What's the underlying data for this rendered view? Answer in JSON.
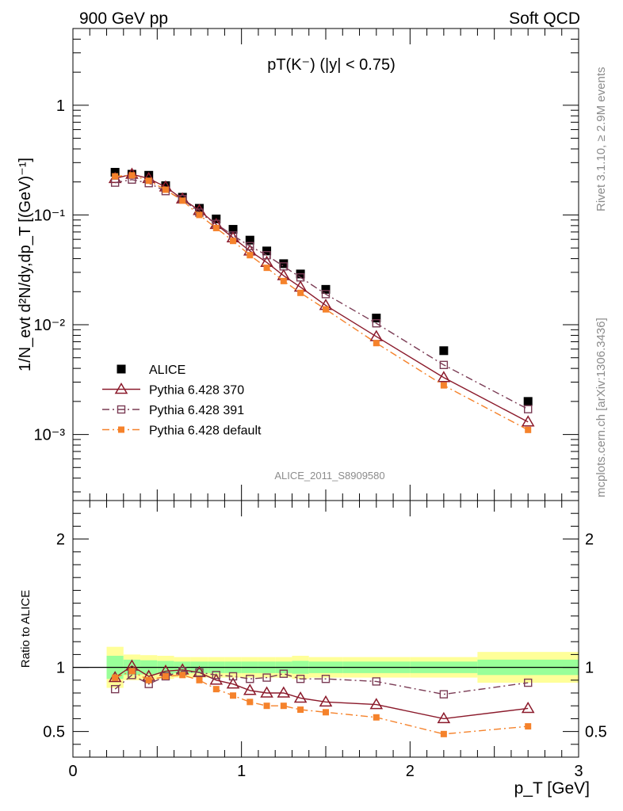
{
  "header": {
    "left": "900 GeV pp",
    "right": "Soft QCD"
  },
  "side_text": {
    "rivet": "Rivet 3.1.10, ≥ 2.9M events",
    "mcplots": "mcplots.cern.ch [arXiv:1306.3436]"
  },
  "chart_data": [
    {
      "type": "scatter",
      "panel": "main",
      "title": "pT(K⁻) (|y| < 0.75)",
      "ylabel": "1/N_evt d²N/dy,dp_T [(GeV)⁻¹]",
      "xlabel": "",
      "watermark": "ALICE_2011_S8909580",
      "yscale": "log",
      "xlim": [
        0,
        3
      ],
      "ylim": [
        0.00025,
        5
      ],
      "x_tick_labels": [
        "0",
        "1",
        "2",
        "3"
      ],
      "y_tick_labels": [
        "10⁻³",
        "10⁻²",
        "10⁻¹",
        "1"
      ],
      "legend_position": "bottom-left",
      "x": [
        0.25,
        0.35,
        0.45,
        0.55,
        0.65,
        0.75,
        0.85,
        0.95,
        1.05,
        1.15,
        1.25,
        1.35,
        1.5,
        1.8,
        2.2,
        2.7
      ],
      "series": [
        {
          "name": "ALICE",
          "color": "#000000",
          "marker": "filled-square",
          "line": "none",
          "values": [
            0.245,
            0.235,
            0.23,
            0.185,
            0.145,
            0.115,
            0.092,
            0.074,
            0.059,
            0.047,
            0.036,
            0.029,
            0.021,
            0.0115,
            0.0058,
            0.002
          ]
        },
        {
          "name": "Pythia 6.428 370",
          "color": "#8b1a2b",
          "marker": "open-triangle",
          "line": "solid",
          "values": [
            0.215,
            0.235,
            0.215,
            0.18,
            0.14,
            0.11,
            0.082,
            0.062,
            0.047,
            0.037,
            0.028,
            0.022,
            0.015,
            0.0078,
            0.0033,
            0.0013
          ]
        },
        {
          "name": "Pythia 6.428 391",
          "color": "#7a3b54",
          "marker": "open-square",
          "line": "dash-dot",
          "values": [
            0.197,
            0.21,
            0.195,
            0.165,
            0.14,
            0.105,
            0.083,
            0.065,
            0.052,
            0.043,
            0.034,
            0.027,
            0.019,
            0.0103,
            0.0043,
            0.0017
          ]
        },
        {
          "name": "Pythia 6.428 default",
          "color": "#f5822b",
          "marker": "filled-square-small",
          "line": "dash-dot",
          "values": [
            0.225,
            0.23,
            0.205,
            0.17,
            0.135,
            0.1,
            0.076,
            0.058,
            0.043,
            0.033,
            0.025,
            0.0195,
            0.0138,
            0.0068,
            0.0028,
            0.0011
          ]
        }
      ]
    },
    {
      "type": "line",
      "panel": "ratio",
      "ylabel": "Ratio to ALICE",
      "xlabel": "p_T [GeV]",
      "xlim": [
        0,
        3
      ],
      "ylim": [
        0.3,
        2.3
      ],
      "x_tick_labels": [
        "0",
        "1",
        "2",
        "3"
      ],
      "y_tick_labels": [
        "0.5",
        "1",
        "2"
      ],
      "reference_line": 1,
      "uncertainty_bands": {
        "bins": [
          [
            0.2,
            0.3
          ],
          [
            0.3,
            0.4
          ],
          [
            0.4,
            0.5
          ],
          [
            0.5,
            0.6
          ],
          [
            0.6,
            0.7
          ],
          [
            0.7,
            0.8
          ],
          [
            0.8,
            0.9
          ],
          [
            0.9,
            1.0
          ],
          [
            1.0,
            1.1
          ],
          [
            1.1,
            1.2
          ],
          [
            1.2,
            1.3
          ],
          [
            1.3,
            1.4
          ],
          [
            1.4,
            1.6
          ],
          [
            1.6,
            2.0
          ],
          [
            2.0,
            2.4
          ],
          [
            2.4,
            3.0
          ]
        ],
        "stat_color": "#99ff99",
        "total_color": "#ffff99",
        "stat_half_width": [
          0.09,
          0.06,
          0.055,
          0.05,
          0.045,
          0.045,
          0.045,
          0.045,
          0.045,
          0.045,
          0.045,
          0.05,
          0.045,
          0.045,
          0.045,
          0.06
        ],
        "total_half_width": [
          0.16,
          0.1,
          0.095,
          0.09,
          0.08,
          0.08,
          0.08,
          0.08,
          0.08,
          0.08,
          0.08,
          0.09,
          0.08,
          0.08,
          0.08,
          0.12
        ]
      },
      "x": [
        0.25,
        0.35,
        0.45,
        0.55,
        0.65,
        0.75,
        0.85,
        0.95,
        1.05,
        1.15,
        1.25,
        1.35,
        1.5,
        1.8,
        2.2,
        2.7
      ],
      "series": [
        {
          "name": "Pythia 6.428 370",
          "color": "#8b1a2b",
          "marker": "open-triangle",
          "line": "solid",
          "values": [
            0.92,
            1.01,
            0.93,
            0.97,
            0.98,
            0.96,
            0.9,
            0.87,
            0.82,
            0.8,
            0.8,
            0.76,
            0.73,
            0.71,
            0.6,
            0.68
          ]
        },
        {
          "name": "Pythia 6.428 391",
          "color": "#7a3b54",
          "marker": "open-square",
          "line": "dash-dot",
          "values": [
            0.83,
            0.94,
            0.87,
            0.93,
            0.97,
            0.96,
            0.94,
            0.93,
            0.91,
            0.92,
            0.95,
            0.91,
            0.91,
            0.89,
            0.79,
            0.88
          ]
        },
        {
          "name": "Pythia 6.428 default",
          "color": "#f5822b",
          "marker": "filled-square-small",
          "line": "dash-dot",
          "values": [
            0.92,
            0.97,
            0.9,
            0.93,
            0.94,
            0.9,
            0.83,
            0.78,
            0.73,
            0.7,
            0.7,
            0.67,
            0.65,
            0.61,
            0.48,
            0.54
          ]
        }
      ]
    }
  ]
}
